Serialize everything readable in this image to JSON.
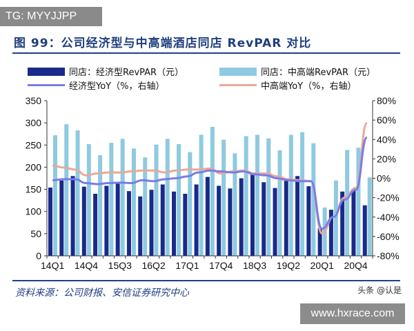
{
  "watermark_top": "TG: MYYJJPP",
  "title": "图 99：公司经济型与中高端酒店同店 RevPAR 对比",
  "source": "资料来源：公司财报、安信证券研究中心",
  "watermark_author": "头条 @认是",
  "watermark_site": "www.hxrace.com",
  "chart_data": {
    "type": "bar",
    "categories": [
      "14Q1",
      "14Q2",
      "14Q3",
      "14Q4",
      "15Q1",
      "15Q2",
      "15Q3",
      "15Q4",
      "16Q1",
      "16Q2",
      "16Q3",
      "16Q4",
      "17Q1",
      "17Q2",
      "17Q3",
      "17Q4",
      "18Q1",
      "18Q2",
      "18Q3",
      "18Q4",
      "19Q1",
      "19Q2",
      "19Q3",
      "19Q4",
      "20Q1",
      "20Q2",
      "20Q3",
      "20Q4",
      "21Q1"
    ],
    "tick_labels": [
      "14Q1",
      "14Q4",
      "15Q3",
      "16Q2",
      "17Q1",
      "17Q4",
      "18Q3",
      "19Q2",
      "20Q1",
      "20Q4"
    ],
    "ylim": [
      0,
      350
    ],
    "yticks": [
      "0",
      "50",
      "100",
      "150",
      "200",
      "250",
      "300",
      "350"
    ],
    "y2lim": [
      -80,
      80
    ],
    "y2ticks": [
      "-80%",
      "-60%",
      "-40%",
      "-20%",
      "0%",
      "20%",
      "40%",
      "60%",
      "80%"
    ],
    "legend_position": "top",
    "series": [
      {
        "name": "同店：经济型RevPAR（元）",
        "type": "bar",
        "axis": "left",
        "color": "#1a2a8a",
        "values": [
          154,
          170,
          180,
          156,
          140,
          158,
          163,
          146,
          134,
          149,
          161,
          145,
          140,
          161,
          178,
          158,
          152,
          175,
          183,
          166,
          153,
          169,
          180,
          157,
          62,
          104,
          145,
          148,
          114
        ]
      },
      {
        "name": "同店：中高端RevPAR（元）",
        "type": "bar",
        "axis": "left",
        "color": "#8ecae0",
        "values": [
          272,
          297,
          283,
          252,
          227,
          255,
          264,
          242,
          222,
          251,
          264,
          252,
          234,
          273,
          291,
          262,
          231,
          270,
          273,
          265,
          238,
          273,
          279,
          254,
          109,
          170,
          239,
          244,
          177
        ]
      },
      {
        "name": "经济型YoY（%，右轴）",
        "type": "line",
        "axis": "right",
        "color": "#7b7be8",
        "values": [
          -2,
          -1,
          -1,
          -5,
          -6,
          -5,
          -4.5,
          -5,
          -2,
          -3,
          -1,
          0,
          2,
          6,
          8,
          7,
          6,
          7,
          4,
          3,
          0,
          -2,
          -3,
          -3,
          -52,
          -40,
          -22,
          -12,
          42
        ]
      },
      {
        "name": "中高端YoY（%，右轴）",
        "type": "line",
        "axis": "right",
        "color": "#e8a898",
        "values": [
          13,
          11,
          9,
          3,
          5,
          6,
          6,
          7,
          8,
          8,
          6,
          8,
          9,
          9,
          10,
          5,
          7,
          8,
          5,
          5,
          2,
          -1,
          -2,
          -3,
          -57,
          -40,
          -20,
          -10,
          57
        ]
      }
    ]
  }
}
